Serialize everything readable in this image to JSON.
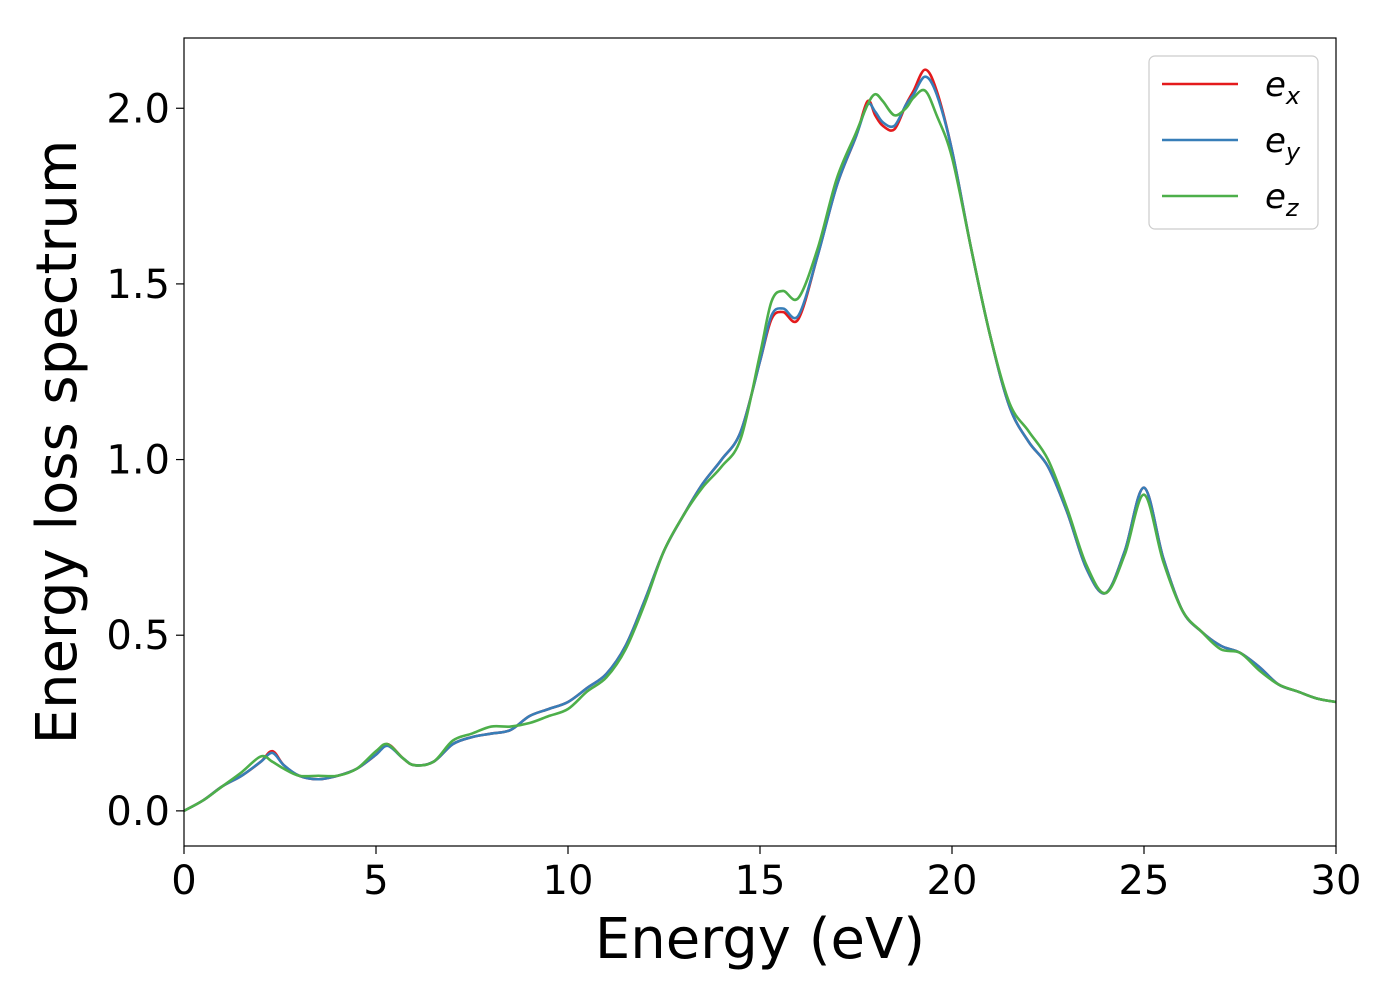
{
  "chart_data": {
    "type": "line",
    "title": "",
    "xlabel": "Energy (eV)",
    "ylabel": "Energy loss spectrum",
    "xlim": [
      0,
      30
    ],
    "ylim": [
      -0.1,
      2.2
    ],
    "xticks": [
      0,
      5,
      10,
      15,
      20,
      25,
      30
    ],
    "xtick_labels": [
      "0",
      "5",
      "10",
      "15",
      "20",
      "25",
      "30"
    ],
    "yticks": [
      0.0,
      0.5,
      1.0,
      1.5,
      2.0
    ],
    "ytick_labels": [
      "0.0",
      "0.5",
      "1.0",
      "1.5",
      "2.0"
    ],
    "grid": false,
    "legend_position": "top-right",
    "series": [
      {
        "name": "e",
        "subscript": "x",
        "color": "#e41a1c",
        "x": [
          0,
          0.5,
          1,
          1.5,
          2,
          2.3,
          2.6,
          3,
          3.5,
          4,
          4.5,
          5,
          5.3,
          5.7,
          6,
          6.5,
          7,
          7.5,
          8,
          8.5,
          9,
          9.5,
          10,
          10.5,
          11,
          11.5,
          12,
          12.5,
          13,
          13.5,
          14,
          14.5,
          15,
          15.3,
          15.6,
          16,
          16.5,
          17,
          17.5,
          17.8,
          18,
          18.2,
          18.5,
          18.8,
          19,
          19.3,
          19.6,
          20,
          20.5,
          21,
          21.5,
          22,
          22.5,
          23,
          23.5,
          24,
          24.5,
          25,
          25.5,
          26,
          26.5,
          27,
          27.5,
          28,
          28.5,
          29,
          29.5,
          30
        ],
        "values": [
          0,
          0.03,
          0.07,
          0.1,
          0.14,
          0.17,
          0.13,
          0.1,
          0.09,
          0.1,
          0.12,
          0.16,
          0.19,
          0.15,
          0.13,
          0.14,
          0.19,
          0.21,
          0.22,
          0.23,
          0.27,
          0.29,
          0.31,
          0.35,
          0.39,
          0.47,
          0.6,
          0.74,
          0.84,
          0.93,
          1.0,
          1.08,
          1.28,
          1.4,
          1.42,
          1.4,
          1.58,
          1.78,
          1.92,
          2.02,
          1.98,
          1.95,
          1.94,
          2.01,
          2.05,
          2.11,
          2.05,
          1.88,
          1.6,
          1.35,
          1.15,
          1.05,
          0.98,
          0.85,
          0.69,
          0.62,
          0.74,
          0.92,
          0.72,
          0.57,
          0.51,
          0.47,
          0.45,
          0.41,
          0.36,
          0.34,
          0.32,
          0.31
        ]
      },
      {
        "name": "e",
        "subscript": "y",
        "color": "#377eb8",
        "x": [
          0,
          0.5,
          1,
          1.5,
          2,
          2.3,
          2.6,
          3,
          3.5,
          4,
          4.5,
          5,
          5.3,
          5.7,
          6,
          6.5,
          7,
          7.5,
          8,
          8.5,
          9,
          9.5,
          10,
          10.5,
          11,
          11.5,
          12,
          12.5,
          13,
          13.5,
          14,
          14.5,
          15,
          15.3,
          15.6,
          16,
          16.5,
          17,
          17.5,
          17.8,
          18,
          18.2,
          18.5,
          18.8,
          19,
          19.3,
          19.6,
          20,
          20.5,
          21,
          21.5,
          22,
          22.5,
          23,
          23.5,
          24,
          24.5,
          25,
          25.5,
          26,
          26.5,
          27,
          27.5,
          28,
          28.5,
          29,
          29.5,
          30
        ],
        "values": [
          0,
          0.03,
          0.07,
          0.1,
          0.14,
          0.165,
          0.13,
          0.1,
          0.09,
          0.1,
          0.12,
          0.16,
          0.185,
          0.15,
          0.13,
          0.14,
          0.19,
          0.21,
          0.22,
          0.23,
          0.27,
          0.29,
          0.31,
          0.35,
          0.39,
          0.47,
          0.6,
          0.74,
          0.84,
          0.93,
          1.0,
          1.08,
          1.28,
          1.41,
          1.43,
          1.41,
          1.58,
          1.78,
          1.92,
          2.01,
          1.99,
          1.96,
          1.95,
          2.01,
          2.04,
          2.09,
          2.04,
          1.88,
          1.6,
          1.35,
          1.15,
          1.05,
          0.98,
          0.85,
          0.69,
          0.62,
          0.74,
          0.92,
          0.72,
          0.57,
          0.51,
          0.47,
          0.45,
          0.41,
          0.36,
          0.34,
          0.32,
          0.31
        ]
      },
      {
        "name": "e",
        "subscript": "z",
        "color": "#4daf4a",
        "x": [
          0,
          0.5,
          1,
          1.5,
          2,
          2.3,
          2.6,
          3,
          3.5,
          4,
          4.5,
          5,
          5.3,
          5.7,
          6,
          6.5,
          7,
          7.5,
          8,
          8.5,
          9,
          9.5,
          10,
          10.5,
          11,
          11.5,
          12,
          12.5,
          13,
          13.5,
          14,
          14.5,
          15,
          15.3,
          15.6,
          16,
          16.5,
          17,
          17.5,
          17.8,
          18,
          18.2,
          18.5,
          18.8,
          19,
          19.3,
          19.6,
          20,
          20.5,
          21,
          21.5,
          22,
          22.5,
          23,
          23.5,
          24,
          24.5,
          25,
          25.5,
          26,
          26.5,
          27,
          27.5,
          28,
          28.5,
          29,
          29.5,
          30
        ],
        "values": [
          0,
          0.03,
          0.07,
          0.11,
          0.155,
          0.14,
          0.12,
          0.1,
          0.1,
          0.1,
          0.12,
          0.17,
          0.19,
          0.15,
          0.13,
          0.14,
          0.2,
          0.22,
          0.24,
          0.24,
          0.25,
          0.27,
          0.29,
          0.34,
          0.38,
          0.46,
          0.59,
          0.74,
          0.84,
          0.92,
          0.98,
          1.06,
          1.3,
          1.45,
          1.48,
          1.46,
          1.6,
          1.8,
          1.93,
          2.01,
          2.04,
          2.02,
          1.98,
          2.0,
          2.03,
          2.05,
          1.98,
          1.86,
          1.6,
          1.35,
          1.16,
          1.08,
          1.0,
          0.86,
          0.7,
          0.62,
          0.73,
          0.9,
          0.71,
          0.57,
          0.51,
          0.46,
          0.45,
          0.4,
          0.36,
          0.34,
          0.32,
          0.31
        ]
      }
    ]
  }
}
